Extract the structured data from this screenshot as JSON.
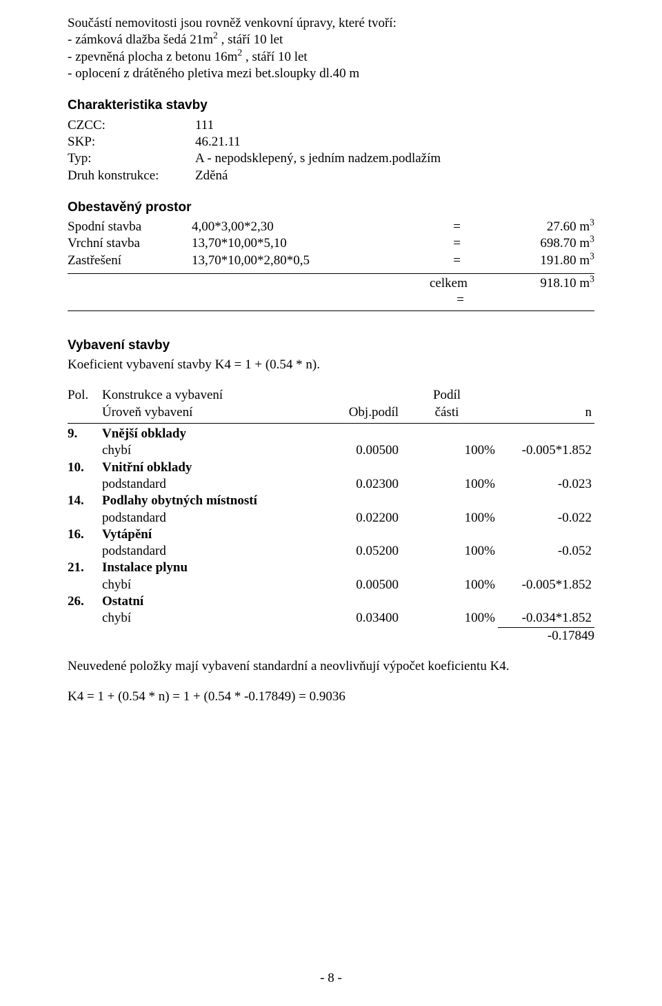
{
  "intro": {
    "line1": "Součástí nemovitosti jsou rovněž venkovní úpravy, které tvoří:",
    "it1a": "- zámková dlažba šedá 21m",
    "it1_sup": "2",
    "it1b": " , stáří 10 let",
    "it2a": "- zpevněná plocha z betonu 16m",
    "it2_sup": "2",
    "it2b": " , stáří 10 let",
    "it3": "- oplocení z drátěného pletiva mezi bet.sloupky dl.40 m"
  },
  "char": {
    "heading": "Charakteristika stavby",
    "czcc_label": "CZCC:",
    "czcc_value": "111",
    "skp_label": "SKP:",
    "skp_value": "46.21.11",
    "typ_label": "Typ:",
    "typ_value": "A - nepodsklepený, s jedním nadzem.podlažím",
    "druh_label": "Druh konstrukce:",
    "druh_value": "Zděná"
  },
  "prostor": {
    "heading": "Obestavěný prostor",
    "rows": [
      {
        "label": "Spodní stavba",
        "expr": "4,00*3,00*2,30",
        "eq": "=",
        "valnum": "27.60 m",
        "sup": "3"
      },
      {
        "label": "Vrchní stavba",
        "expr": "13,70*10,00*5,10",
        "eq": "=",
        "valnum": "698.70 m",
        "sup": "3"
      },
      {
        "label": "Zastřešení",
        "expr": "13,70*10,00*2,80*0,5",
        "eq": "=",
        "valnum": "191.80 m",
        "sup": "3"
      }
    ],
    "celkem_label": "celkem =",
    "celkem_valnum": "918.10 m",
    "celkem_sup": "3"
  },
  "vyb": {
    "heading": "Vybavení stavby",
    "koef": "Koeficient vybavení stavby K4 = 1 + (0.54 * n).",
    "h_pol": "Pol.",
    "h_kv": "Konstrukce a vybavení",
    "h_podil": "Podíl",
    "h_uroven": "Úroveň vybavení",
    "h_obj": "Obj.podíl",
    "h_casti": "části",
    "h_n": "n",
    "items": [
      {
        "no": "9.",
        "name": "Vnější obklady",
        "level": "chybí",
        "obj": "0.00500",
        "pod": "100%",
        "n": "-0.005*1.852"
      },
      {
        "no": "10.",
        "name": "Vnitřní obklady",
        "level": "podstandard",
        "obj": "0.02300",
        "pod": "100%",
        "n": "-0.023"
      },
      {
        "no": "14.",
        "name": "Podlahy obytných místností",
        "level": "podstandard",
        "obj": "0.02200",
        "pod": "100%",
        "n": "-0.022"
      },
      {
        "no": "16.",
        "name": "Vytápění",
        "level": "podstandard",
        "obj": "0.05200",
        "pod": "100%",
        "n": "-0.052"
      },
      {
        "no": "21.",
        "name": "Instalace plynu",
        "level": "chybí",
        "obj": "0.00500",
        "pod": "100%",
        "n": "-0.005*1.852"
      },
      {
        "no": "26.",
        "name": "Ostatní",
        "level": "chybí",
        "obj": "0.03400",
        "pod": "100%",
        "n": "-0.034*1.852"
      }
    ],
    "sum_n": "-0.17849"
  },
  "closing": {
    "note": "Neuvedené položky mají vybavení standardní a neovlivňují výpočet koeficientu K4.",
    "k4": "K4 = 1 + (0.54 * n) = 1 + (0.54 * -0.17849) = 0.9036"
  },
  "footer": {
    "pageno": "- 8 -"
  }
}
